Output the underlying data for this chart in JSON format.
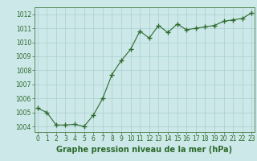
{
  "x": [
    0,
    1,
    2,
    3,
    4,
    5,
    6,
    7,
    8,
    9,
    10,
    11,
    12,
    13,
    14,
    15,
    16,
    17,
    18,
    19,
    20,
    21,
    22,
    23
  ],
  "y": [
    1005.3,
    1005.0,
    1004.1,
    1004.1,
    1004.15,
    1004.0,
    1004.8,
    1006.0,
    1007.7,
    1008.7,
    1009.5,
    1010.8,
    1010.3,
    1011.2,
    1010.7,
    1011.3,
    1010.9,
    1011.0,
    1011.1,
    1011.2,
    1011.5,
    1011.6,
    1011.7,
    1012.1
  ],
  "line_color": "#2d6a2d",
  "marker": "+",
  "marker_size": 4,
  "bg_color": "#cce8e8",
  "grid_color": "#aacfcf",
  "xlabel": "Graphe pression niveau de la mer (hPa)",
  "xlabel_color": "#2d6a2d",
  "ylabel_ticks": [
    1004,
    1005,
    1006,
    1007,
    1008,
    1009,
    1010,
    1011,
    1012
  ],
  "xticks": [
    0,
    1,
    2,
    3,
    4,
    5,
    6,
    7,
    8,
    9,
    10,
    11,
    12,
    13,
    14,
    15,
    16,
    17,
    18,
    19,
    20,
    21,
    22,
    23
  ],
  "xlim": [
    -0.3,
    23.3
  ],
  "ylim": [
    1003.6,
    1012.5
  ],
  "tick_color": "#2d6a2d",
  "tick_fontsize": 5.5,
  "xlabel_fontsize": 7.0,
  "spine_color": "#5a8a5a"
}
